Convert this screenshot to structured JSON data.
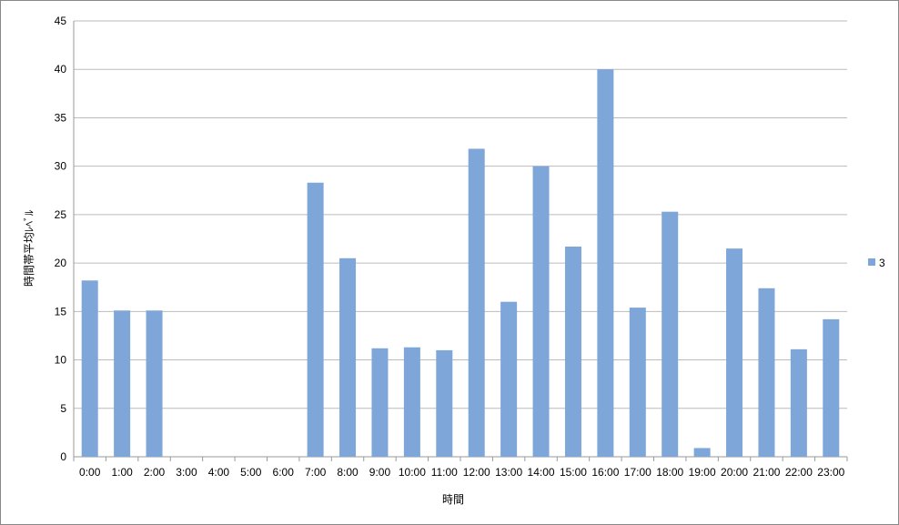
{
  "chart_data": {
    "type": "bar",
    "title": "",
    "xlabel": "時間",
    "ylabel": "時間帯平均ﾚﾍﾞﾙ",
    "categories": [
      "0:00",
      "1:00",
      "2:00",
      "3:00",
      "4:00",
      "5:00",
      "6:00",
      "7:00",
      "8:00",
      "9:00",
      "10:00",
      "11:00",
      "12:00",
      "13:00",
      "14:00",
      "15:00",
      "16:00",
      "17:00",
      "18:00",
      "19:00",
      "20:00",
      "21:00",
      "22:00",
      "23:00"
    ],
    "series": [
      {
        "name": "3",
        "color": "#7ea6d8",
        "values": [
          18.2,
          15.1,
          15.1,
          0,
          0,
          0,
          0,
          28.3,
          20.5,
          11.2,
          11.3,
          11.0,
          31.8,
          16.0,
          30.0,
          21.7,
          40.0,
          15.4,
          25.3,
          0.9,
          21.5,
          17.4,
          11.1,
          14.2
        ]
      }
    ],
    "ylim": [
      0,
      45
    ],
    "yticks": [
      0,
      5,
      10,
      15,
      20,
      25,
      30,
      35,
      40,
      45
    ],
    "grid": true,
    "legend": "right"
  }
}
